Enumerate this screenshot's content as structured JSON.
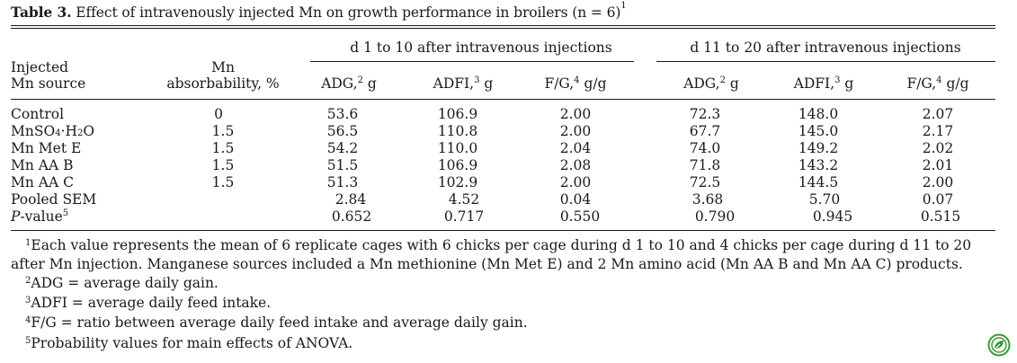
{
  "caption": {
    "label": "Table 3.",
    "text": "Effect of intravenously injected Mn on growth performance in broilers (n = 6)",
    "sup": "1"
  },
  "header": {
    "group1": "d 1 to 10 after intravenous injections",
    "group2": "d 11 to 20 after intravenous injections",
    "col_source_line1": "Injected",
    "col_source_line2": "Mn source",
    "col_abs_line1": "Mn",
    "col_abs_line2": "absorbability, %",
    "adg": "ADG,",
    "adg_sup": "2",
    "adg_unit": " g",
    "adfi": "ADFI,",
    "adfi_sup": "3",
    "adfi_unit": " g",
    "fg": "F/G,",
    "fg_sup": "4",
    "fg_unit": " g/g"
  },
  "rows": [
    {
      "source": "Control",
      "abs": "0",
      "v": [
        "53.6",
        "106.9",
        "2.00",
        "72.3",
        "148.0",
        "2.07"
      ]
    },
    {
      "source_pre": "MnSO",
      "source_sub1": "4",
      "source_mid": "·H",
      "source_sub2": "2",
      "source_post": "O",
      "abs": "1.5",
      "v": [
        "56.5",
        "110.8",
        "2.00",
        "67.7",
        "145.0",
        "2.17"
      ]
    },
    {
      "source": "Mn Met E",
      "abs": "1.5",
      "v": [
        "54.2",
        "110.0",
        "2.04",
        "74.0",
        "149.2",
        "2.02"
      ]
    },
    {
      "source": "Mn AA B",
      "abs": "1.5",
      "v": [
        "51.5",
        "106.9",
        "2.08",
        "71.8",
        "143.2",
        "2.01"
      ]
    },
    {
      "source": "Mn AA C",
      "abs": "1.5",
      "v": [
        "51.3",
        "102.9",
        "2.00",
        "72.5",
        "144.5",
        "2.00"
      ]
    },
    {
      "source": "Pooled SEM",
      "abs": "",
      "v": [
        "2.84",
        "4.52",
        "0.04",
        "3.68",
        "5.70",
        "0.07"
      ]
    },
    {
      "source_italic": "P",
      "source_rest": "-value",
      "source_sup": "5",
      "abs": "",
      "v": [
        "0.652",
        "0.717",
        "0.550",
        "0.790",
        "0.945",
        "0.515"
      ]
    }
  ],
  "footnotes": {
    "f1_sup": "1",
    "f1": "Each value represents the mean of 6 replicate cages with 6 chicks per cage during d 1 to 10 and 4 chicks per cage during d 11 to 20 after Mn injection. Manganese sources included a Mn methionine (Mn Met E) and 2 Mn amino acid (Mn AA B and Mn AA C) products.",
    "f2_sup": "2",
    "f2": "ADG = average daily gain.",
    "f3_sup": "3",
    "f3": "ADFI = average daily feed intake.",
    "f4_sup": "4",
    "f4": "F/G = ratio between average daily feed intake and average daily gain.",
    "f5_sup": "5",
    "f5": "Probability values for main effects of ANOVA."
  },
  "colors": {
    "text": "#1a1a1a",
    "logo": "#3a9a3a"
  },
  "icons": {
    "logo": "leaf-logo-icon"
  }
}
